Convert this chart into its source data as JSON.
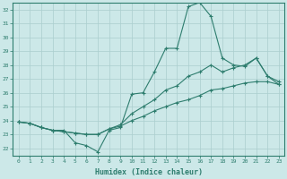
{
  "xlabel": "Humidex (Indice chaleur)",
  "xlim": [
    -0.5,
    23.5
  ],
  "ylim": [
    21.5,
    32.5
  ],
  "yticks": [
    22,
    23,
    24,
    25,
    26,
    27,
    28,
    29,
    30,
    31,
    32
  ],
  "xticks": [
    0,
    1,
    2,
    3,
    4,
    5,
    6,
    7,
    8,
    9,
    10,
    11,
    12,
    13,
    14,
    15,
    16,
    17,
    18,
    19,
    20,
    21,
    22,
    23
  ],
  "line_color": "#2e7d6e",
  "bg_color": "#cce8e8",
  "grid_color": "#aacece",
  "line1": [
    23.9,
    23.8,
    23.5,
    23.3,
    23.3,
    22.4,
    22.2,
    21.75,
    23.3,
    23.5,
    25.9,
    26.0,
    27.5,
    29.2,
    29.2,
    32.2,
    32.5,
    31.5,
    28.5,
    28.0,
    27.9,
    28.5,
    27.2,
    26.6
  ],
  "line2": [
    23.9,
    23.8,
    23.5,
    23.3,
    23.2,
    23.1,
    23.0,
    23.0,
    23.4,
    23.7,
    24.5,
    25.0,
    25.5,
    26.2,
    26.5,
    27.2,
    27.5,
    28.0,
    27.5,
    27.8,
    28.0,
    28.5,
    27.2,
    26.8
  ],
  "line3": [
    23.9,
    23.8,
    23.5,
    23.3,
    23.2,
    23.1,
    23.0,
    23.0,
    23.4,
    23.6,
    24.0,
    24.3,
    24.7,
    25.0,
    25.3,
    25.5,
    25.8,
    26.2,
    26.3,
    26.5,
    26.7,
    26.8,
    26.8,
    26.6
  ]
}
